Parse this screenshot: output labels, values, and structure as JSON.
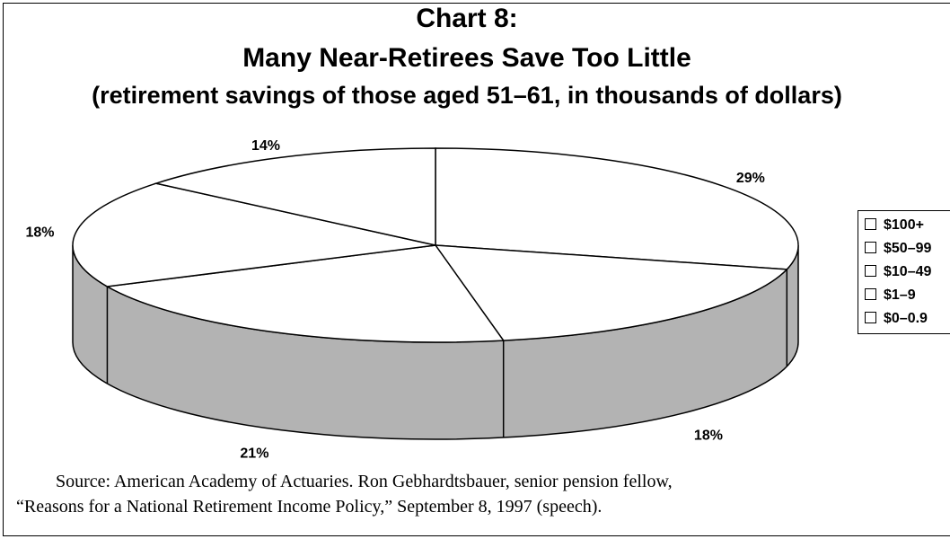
{
  "chart_data": {
    "type": "pie",
    "style": "3d",
    "title": "Chart 8:",
    "subtitle": "Many Near-Retirees Save Too Little",
    "subtitle2": "(retirement savings of those aged 51–61, in thousands of dollars)",
    "categories": [
      "$100+",
      "$50–99",
      "$10–49",
      "$1–9",
      "$0–0.9"
    ],
    "values": [
      29,
      18,
      21,
      18,
      14
    ],
    "labels": [
      "29%",
      "18%",
      "21%",
      "18%",
      "14%"
    ],
    "legend_position": "right"
  },
  "colors": {
    "top": "#ffffff",
    "side": "#b3b3b3",
    "line": "#000000"
  },
  "source": {
    "line1": "Source: American Academy of Actuaries. Ron Gebhardtsbauer, senior pension fellow,",
    "line2": "“Reasons for a National Retirement Income Policy,” September 8, 1997 (speech)."
  }
}
